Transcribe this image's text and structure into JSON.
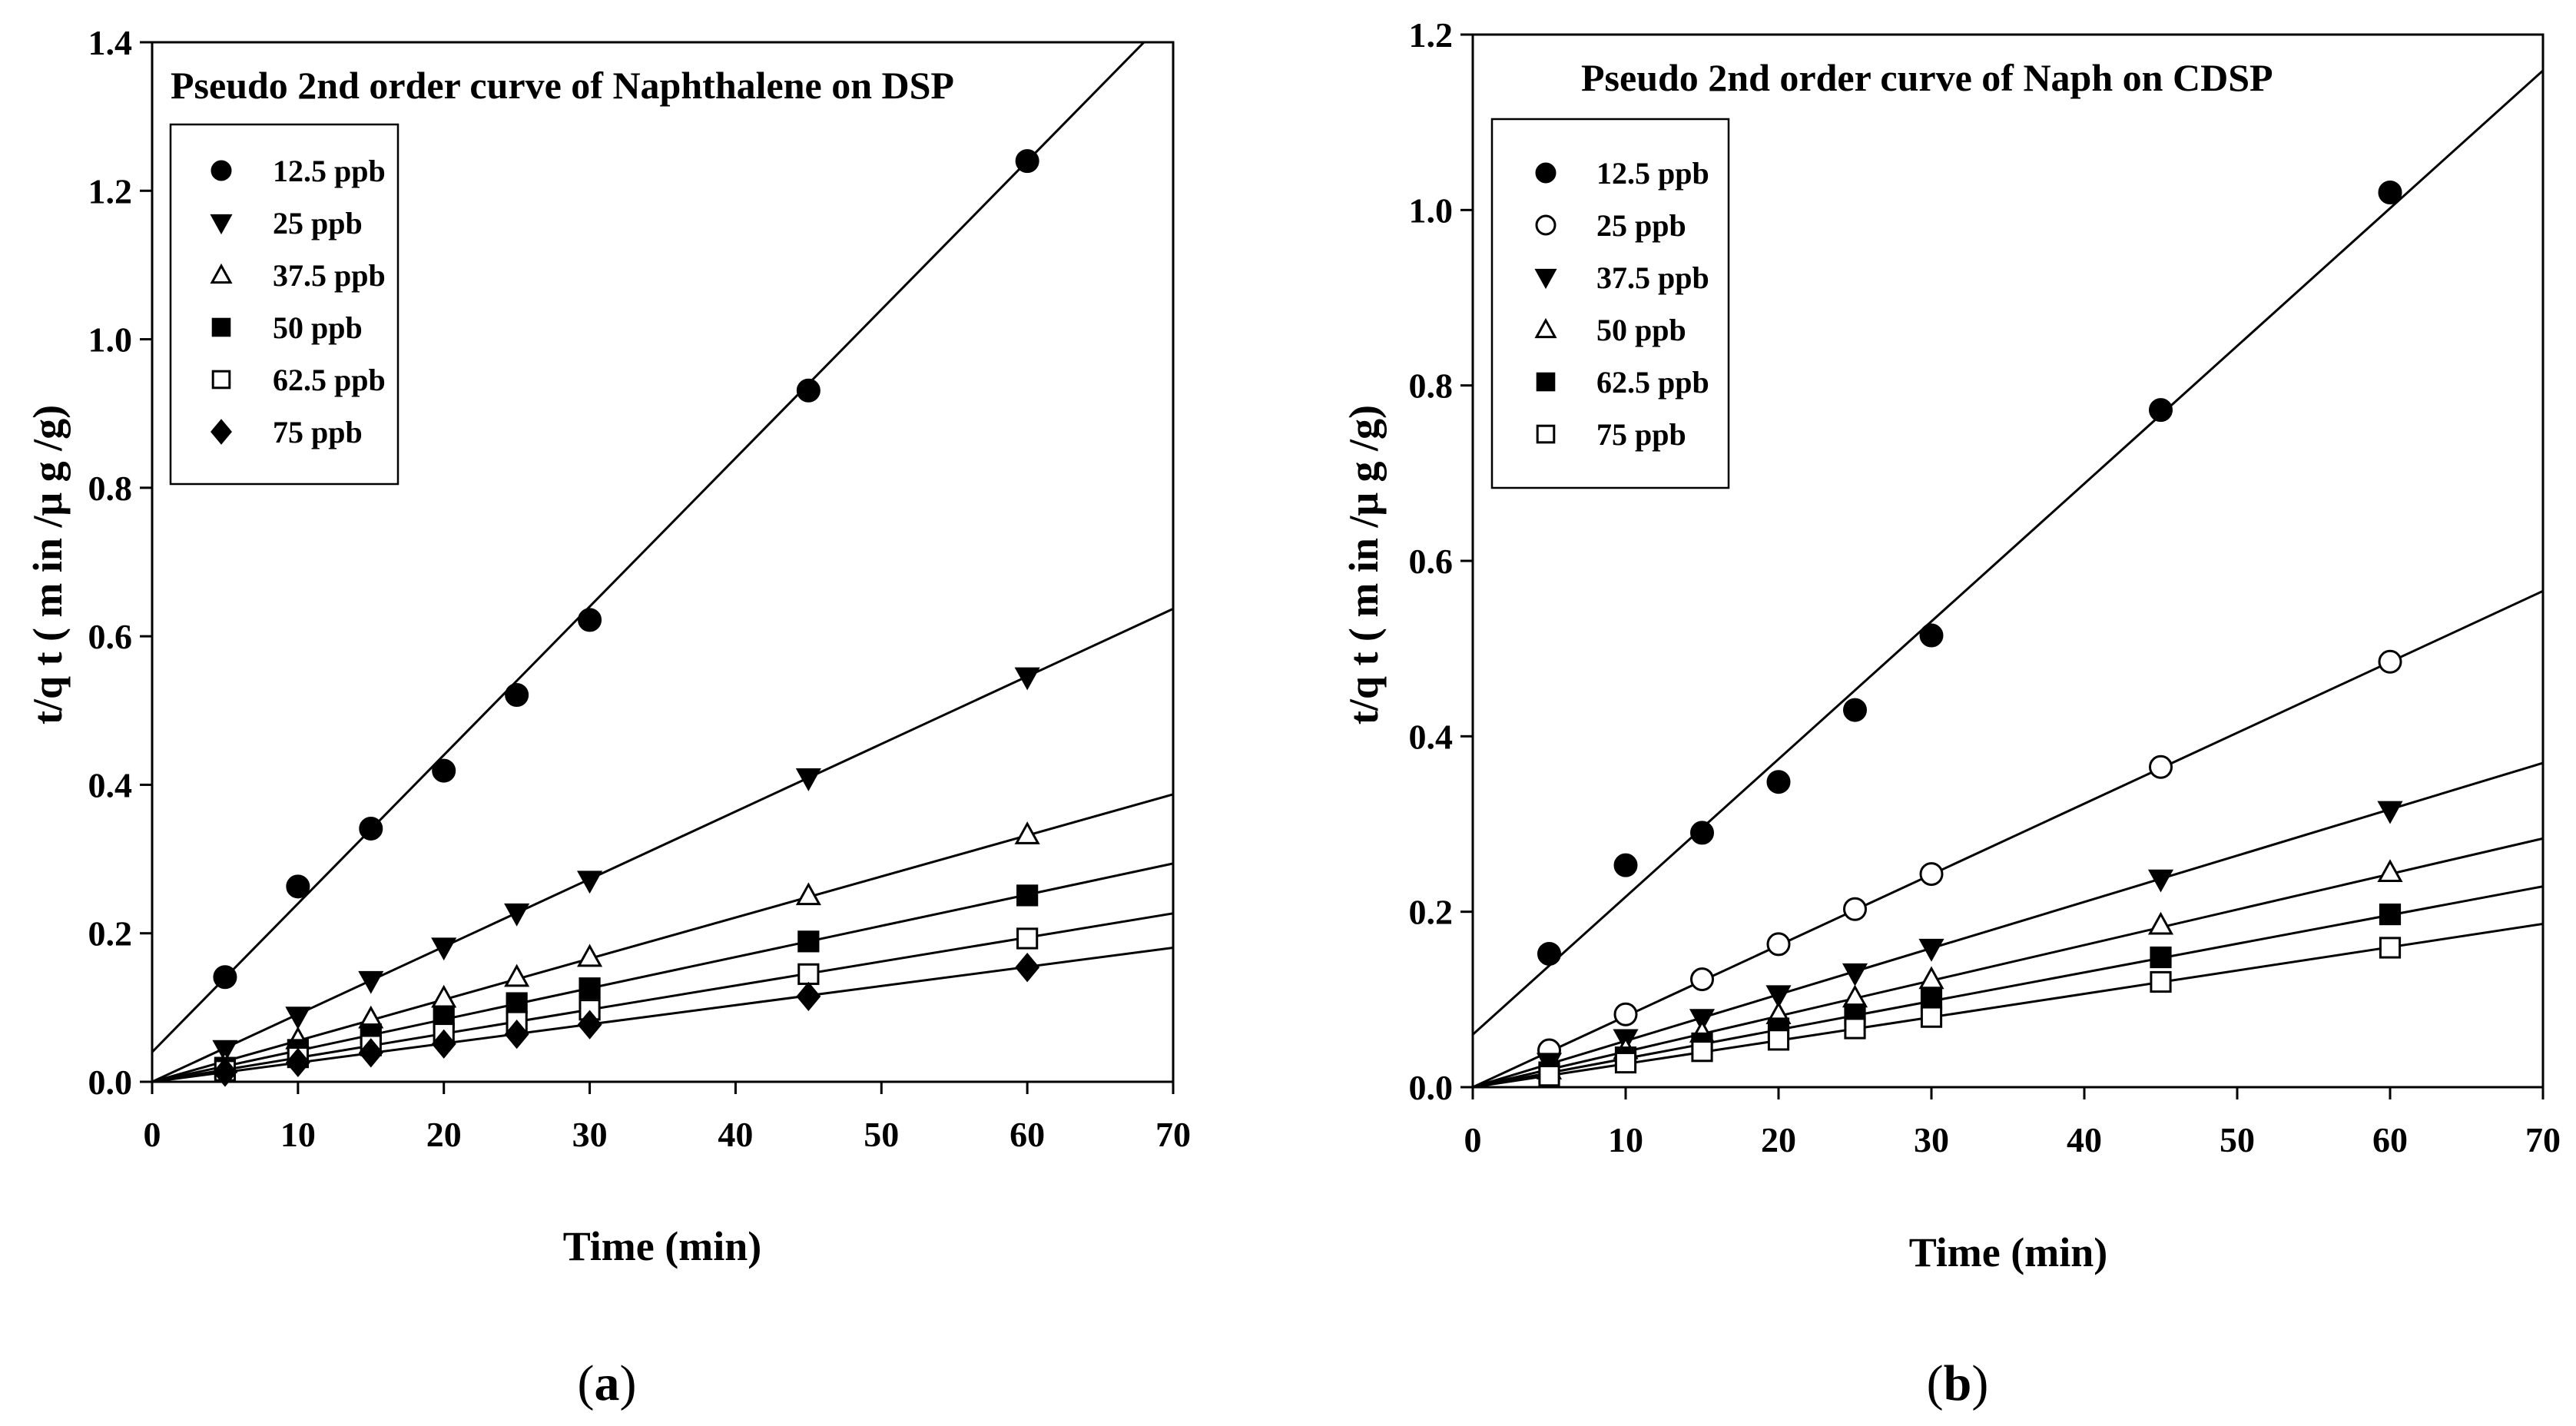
{
  "chart_data": [
    {
      "type": "scatter",
      "title": "Pseudo 2nd order curve of Naphthalene on DSP",
      "xlabel": "Time (min)",
      "ylabel": "t/q t ( m in /μ g /g)",
      "xlim": [
        0,
        70
      ],
      "ylim": [
        0,
        1.4
      ],
      "xticks": [
        "0",
        "10",
        "20",
        "30",
        "40",
        "50",
        "60",
        "70"
      ],
      "yticks": [
        "0.0",
        "0.2",
        "0.4",
        "0.6",
        "0.8",
        "1.0",
        "1.2",
        "1.4"
      ],
      "panel_label": "a",
      "legend_position": "top-left",
      "x": [
        5,
        10,
        15,
        20,
        25,
        30,
        45,
        60
      ],
      "series": [
        {
          "name": "12.5 ppb",
          "marker": "circle-filled",
          "values": [
            0.141,
            0.263,
            0.341,
            0.419,
            0.521,
            0.622,
            0.931,
            1.24
          ],
          "fit": {
            "intercept": 0.04,
            "slope": 0.02
          }
        },
        {
          "name": "25 ppb",
          "marker": "triangle-down-filled",
          "values": [
            0.043,
            0.088,
            0.136,
            0.181,
            0.227,
            0.271,
            0.409,
            0.545
          ],
          "fit": {
            "intercept": 0.0,
            "slope": 0.0091
          }
        },
        {
          "name": "37.5 ppb",
          "marker": "triangle-up-open",
          "values": [
            0.025,
            0.057,
            0.085,
            0.113,
            0.141,
            0.168,
            0.251,
            0.333
          ],
          "fit": {
            "intercept": 0.0,
            "slope": 0.00553
          }
        },
        {
          "name": "50 ppb",
          "marker": "square-filled",
          "values": [
            0.019,
            0.043,
            0.064,
            0.086,
            0.106,
            0.126,
            0.189,
            0.251
          ],
          "fit": {
            "intercept": 0.0,
            "slope": 0.0042
          }
        },
        {
          "name": "62.5 ppb",
          "marker": "square-open",
          "values": [
            0.015,
            0.033,
            0.049,
            0.065,
            0.081,
            0.097,
            0.145,
            0.193
          ],
          "fit": {
            "intercept": 0.0,
            "slope": 0.00324
          }
        },
        {
          "name": "75 ppb",
          "marker": "diamond-filled",
          "values": [
            0.013,
            0.026,
            0.039,
            0.051,
            0.064,
            0.077,
            0.115,
            0.154
          ],
          "fit": {
            "intercept": 0.0,
            "slope": 0.00258
          }
        }
      ]
    },
    {
      "type": "scatter",
      "title": "Pseudo 2nd order curve of Naph on CDSP",
      "xlabel": "Time (min)",
      "ylabel": "t/q t ( m in /μ g /g)",
      "xlim": [
        0,
        70
      ],
      "ylim": [
        0,
        1.2
      ],
      "xticks": [
        "0",
        "10",
        "20",
        "30",
        "40",
        "50",
        "60",
        "70"
      ],
      "yticks": [
        "0.0",
        "0.2",
        "0.4",
        "0.6",
        "0.8",
        "1.0",
        "1.2"
      ],
      "panel_label": "b",
      "legend_position": "top-left",
      "x": [
        5,
        10,
        15,
        20,
        25,
        30,
        45,
        60
      ],
      "series": [
        {
          "name": "12.5 ppb",
          "marker": "circle-filled",
          "values": [
            0.152,
            0.253,
            0.29,
            0.348,
            0.43,
            0.515,
            0.772,
            1.02
          ],
          "fit": {
            "intercept": 0.06,
            "slope": 0.0157
          }
        },
        {
          "name": "25 ppb",
          "marker": "circle-open",
          "values": [
            0.042,
            0.083,
            0.123,
            0.163,
            0.203,
            0.243,
            0.365,
            0.485
          ],
          "fit": {
            "intercept": 0.0,
            "slope": 0.00808
          }
        },
        {
          "name": "37.5 ppb",
          "marker": "triangle-down-filled",
          "values": [
            0.028,
            0.055,
            0.078,
            0.105,
            0.13,
            0.158,
            0.237,
            0.315
          ],
          "fit": {
            "intercept": 0.0,
            "slope": 0.00528
          }
        },
        {
          "name": "50 ppb",
          "marker": "triangle-up-open",
          "values": [
            0.02,
            0.043,
            0.062,
            0.083,
            0.102,
            0.123,
            0.185,
            0.245
          ],
          "fit": {
            "intercept": 0.0,
            "slope": 0.00405
          }
        },
        {
          "name": "62.5 ppb",
          "marker": "square-filled",
          "values": [
            0.017,
            0.034,
            0.05,
            0.067,
            0.083,
            0.1,
            0.148,
            0.197
          ],
          "fit": {
            "intercept": 0.0,
            "slope": 0.00327
          }
        },
        {
          "name": "75 ppb",
          "marker": "square-open",
          "values": [
            0.013,
            0.028,
            0.041,
            0.054,
            0.067,
            0.08,
            0.12,
            0.159
          ],
          "fit": {
            "intercept": 0.0,
            "slope": 0.00266
          }
        }
      ]
    }
  ]
}
